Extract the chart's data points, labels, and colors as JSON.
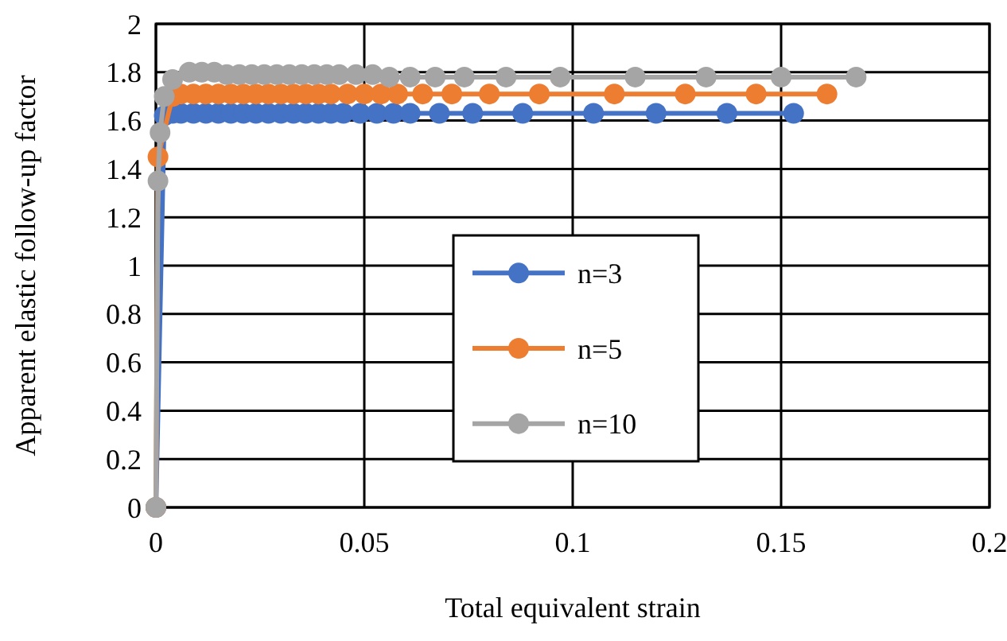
{
  "chart_data": {
    "type": "line",
    "xlabel": "Total equivalent strain",
    "ylabel": "Apparent elastic follow-up factor",
    "xlim": [
      0,
      0.2
    ],
    "xticks": [
      0,
      0.05,
      0.1,
      0.15,
      0.2
    ],
    "ylim": [
      0,
      2
    ],
    "yticks": [
      0,
      0.2,
      0.4,
      0.6,
      0.8,
      1,
      1.2,
      1.4,
      1.6,
      1.8,
      2
    ],
    "grid": true,
    "legend": "center",
    "marker": "circle",
    "line_style": "solid",
    "series": [
      {
        "name": "n=3",
        "color": "#4472c4",
        "x": [
          0,
          0.002,
          0.004,
          0.006,
          0.009,
          0.012,
          0.015,
          0.018,
          0.021,
          0.024,
          0.027,
          0.03,
          0.033,
          0.036,
          0.039,
          0.042,
          0.045,
          0.049,
          0.053,
          0.057,
          0.061,
          0.068,
          0.076,
          0.088,
          0.105,
          0.12,
          0.137,
          0.153
        ],
        "values": [
          0,
          1.62,
          1.63,
          1.63,
          1.63,
          1.63,
          1.63,
          1.63,
          1.63,
          1.63,
          1.63,
          1.63,
          1.63,
          1.63,
          1.63,
          1.63,
          1.63,
          1.63,
          1.63,
          1.63,
          1.63,
          1.63,
          1.63,
          1.63,
          1.63,
          1.63,
          1.63,
          1.63
        ]
      },
      {
        "name": "n=5",
        "color": "#ed7d31",
        "x": [
          0,
          0.0005,
          0.004,
          0.006,
          0.009,
          0.012,
          0.015,
          0.018,
          0.021,
          0.024,
          0.027,
          0.03,
          0.033,
          0.036,
          0.039,
          0.042,
          0.046,
          0.05,
          0.054,
          0.058,
          0.064,
          0.071,
          0.08,
          0.092,
          0.11,
          0.127,
          0.144,
          0.161
        ],
        "values": [
          0,
          1.45,
          1.7,
          1.71,
          1.71,
          1.71,
          1.71,
          1.71,
          1.71,
          1.71,
          1.71,
          1.71,
          1.71,
          1.71,
          1.71,
          1.71,
          1.71,
          1.71,
          1.71,
          1.71,
          1.71,
          1.71,
          1.71,
          1.71,
          1.71,
          1.71,
          1.71,
          1.71
        ]
      },
      {
        "name": "n=10",
        "color": "#a5a5a5",
        "x": [
          0,
          0.0005,
          0.001,
          0.002,
          0.004,
          0.008,
          0.011,
          0.014,
          0.017,
          0.02,
          0.023,
          0.026,
          0.029,
          0.032,
          0.035,
          0.038,
          0.041,
          0.044,
          0.048,
          0.052,
          0.056,
          0.061,
          0.067,
          0.074,
          0.084,
          0.097,
          0.115,
          0.132,
          0.15,
          0.168
        ],
        "values": [
          0,
          1.35,
          1.55,
          1.7,
          1.77,
          1.8,
          1.8,
          1.8,
          1.79,
          1.79,
          1.79,
          1.79,
          1.79,
          1.79,
          1.79,
          1.79,
          1.79,
          1.79,
          1.79,
          1.79,
          1.78,
          1.78,
          1.78,
          1.78,
          1.78,
          1.78,
          1.78,
          1.78,
          1.78,
          1.78
        ]
      }
    ]
  }
}
